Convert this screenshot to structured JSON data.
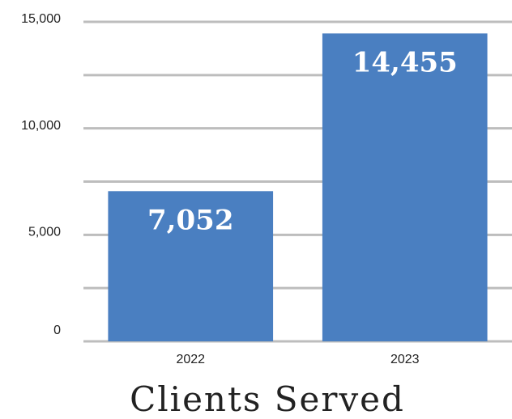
{
  "chart_data": {
    "type": "bar",
    "title": "Clients Served",
    "categories": [
      "2022",
      "2023"
    ],
    "values": [
      7052,
      14455
    ],
    "value_labels": [
      "7,052",
      "14,455"
    ],
    "color": "#4a7fc1",
    "ylim": [
      0,
      15000
    ],
    "yticks": [
      0,
      {
        "value": 5000,
        "label": "5,000"
      },
      {
        "value": 10000,
        "label": "10,000"
      },
      {
        "value": 15000,
        "label": "15,000"
      }
    ],
    "minor_yticks": [
      2500,
      7500,
      12500
    ],
    "grid": true
  }
}
